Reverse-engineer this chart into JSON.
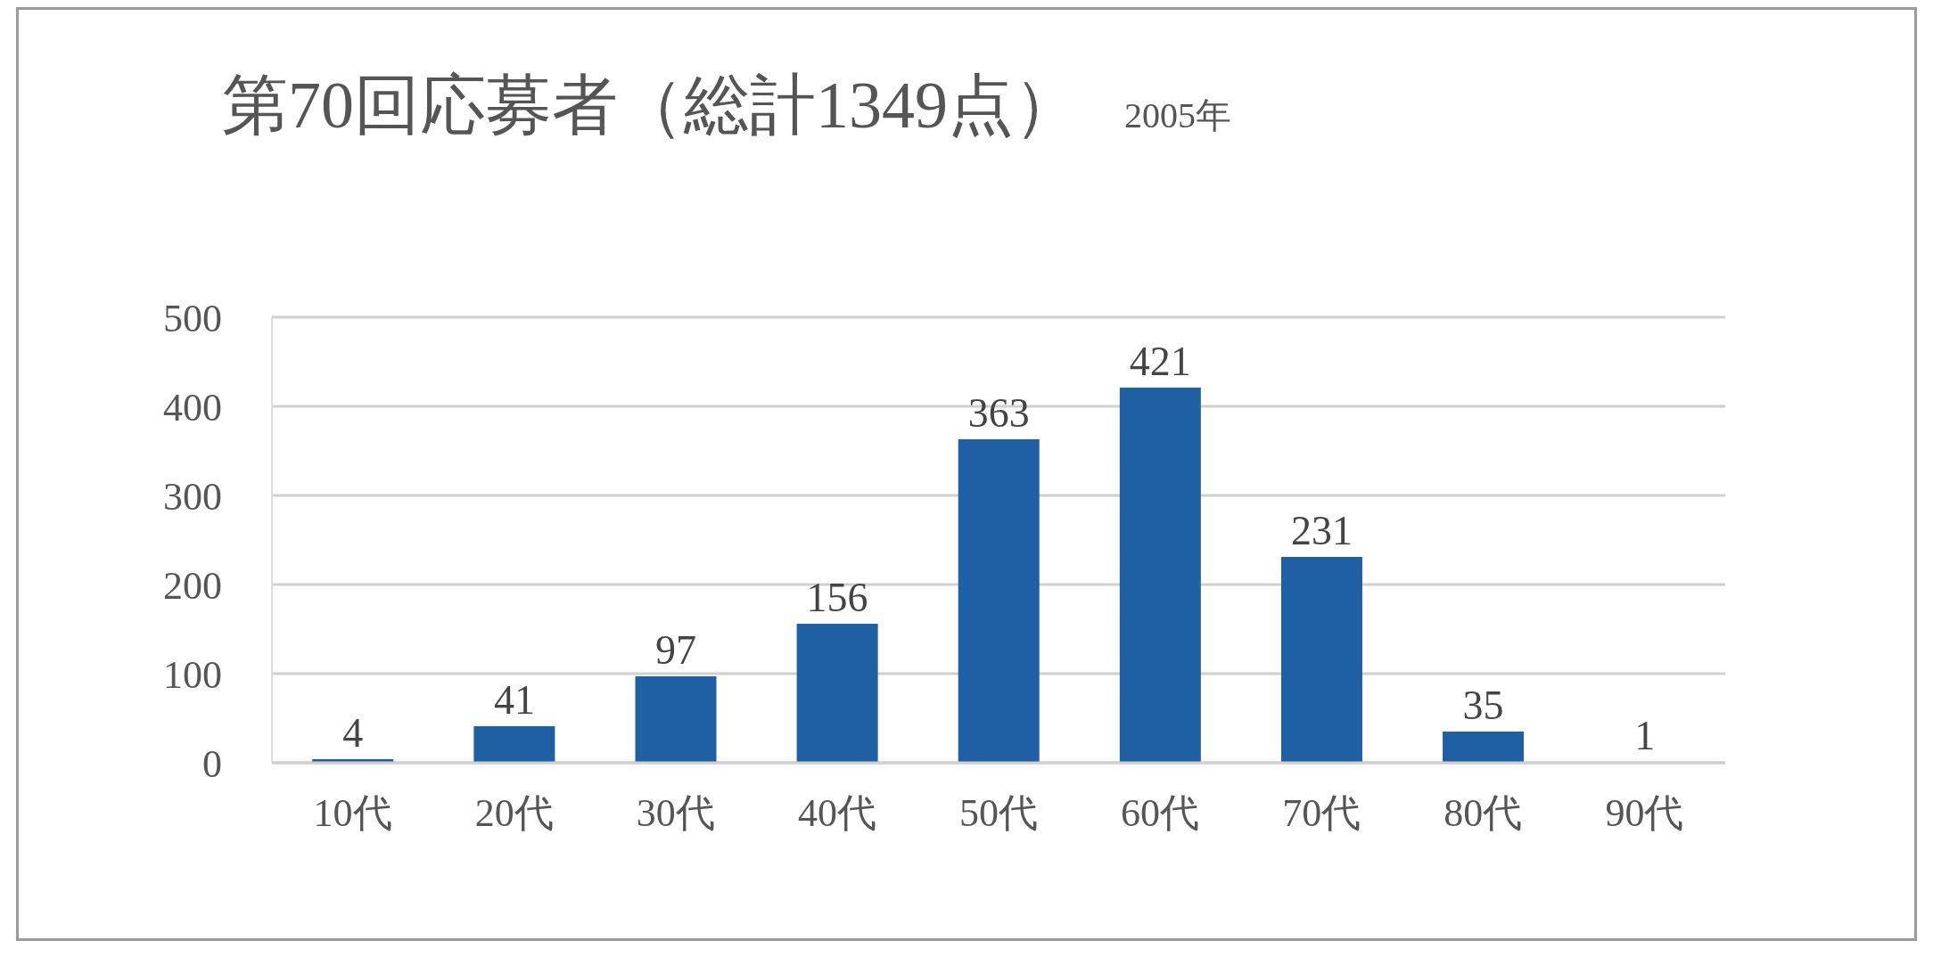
{
  "chart_data": {
    "type": "bar",
    "title": "第70回応募者（総計1349点）",
    "subtitle": "2005年",
    "categories": [
      "10代",
      "20代",
      "30代",
      "40代",
      "50代",
      "60代",
      "70代",
      "80代",
      "90代"
    ],
    "values": [
      4,
      41,
      97,
      156,
      363,
      421,
      231,
      35,
      1
    ],
    "color": "#1f5fa3",
    "ylim": [
      0,
      500
    ],
    "yticks": [
      0,
      100,
      200,
      300,
      400,
      500
    ],
    "grid": "y",
    "data_labels": true
  }
}
